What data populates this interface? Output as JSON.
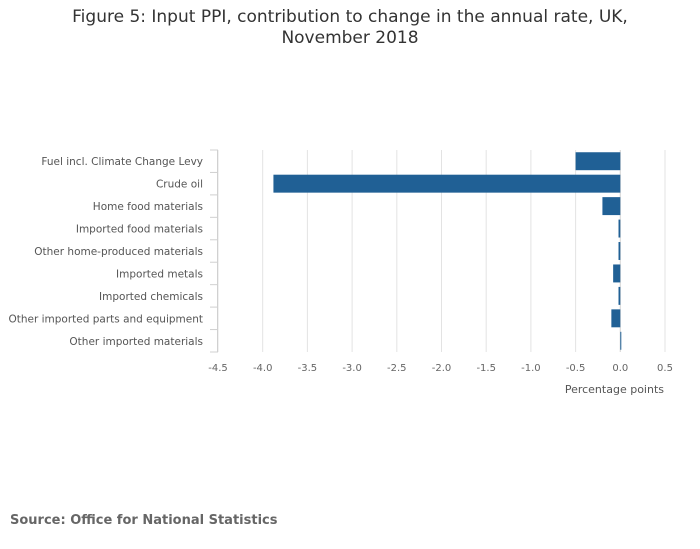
{
  "title": "Figure 5: Input PPI, contribution to change in the annual rate, UK,",
  "title_line2": "November 2018",
  "source": "Source: Office for National Statistics",
  "chart_data": {
    "type": "bar",
    "orientation": "horizontal",
    "categories": [
      "Fuel incl. Climate Change Levy",
      "Crude oil",
      "Home food materials",
      "Imported food materials",
      "Other home-produced materials",
      "Imported metals",
      "Imported chemicals",
      "Other imported parts and equipment",
      "Other imported materials"
    ],
    "values": [
      -0.5,
      -3.88,
      -0.2,
      -0.02,
      -0.02,
      -0.08,
      -0.02,
      -0.1,
      0.01
    ],
    "xlim": [
      -4.5,
      0.5
    ],
    "xticks": [
      "-4.5",
      "-4.0",
      "-3.5",
      "-3.0",
      "-2.5",
      "-2.0",
      "-1.5",
      "-1.0",
      "-0.5",
      "0.0",
      "0.5"
    ],
    "xlabel": "Percentage points",
    "ylabel": "",
    "grid": true,
    "bar_color": "#206095"
  }
}
